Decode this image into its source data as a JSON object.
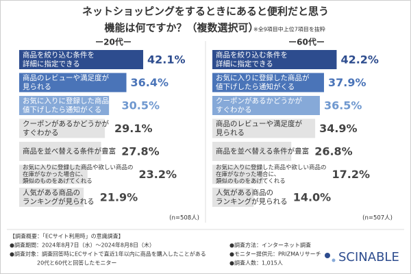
{
  "title": [
    "ネットショッピングをするときにあると便利だと思う",
    "機能は何ですか？（複数選択可）"
  ],
  "note": "※全9項目中上位7項目を抜粋",
  "chart_data": [
    {
      "type": "bar",
      "title": "ー20代ー",
      "categories": [
        [
          "商品を絞り込む条件を",
          "詳細に指定できる"
        ],
        [
          "商品のレビューや満足度が",
          "見られる"
        ],
        [
          "お気に入りに登録した商品が",
          "値下げしたら通知がくる"
        ],
        [
          "クーポンがあるかどうかが",
          "すぐわかる"
        ],
        [
          "商品を並べ替える条件が豊富"
        ],
        [
          "お気に入りに登録した商品や欲しい商品の",
          "在庫がなかった場合に、",
          "類似のものをあげてくれる"
        ],
        [
          "人気がある商品の",
          "ランキングが見られる"
        ]
      ],
      "values": [
        42.1,
        36.4,
        30.5,
        29.1,
        27.8,
        23.2,
        21.9
      ],
      "value_labels": [
        "42.1%",
        "36.4%",
        "30.5%",
        "29.1%",
        "27.8%",
        "23.2%",
        "21.9%"
      ],
      "colors": [
        "#2d4c8e",
        "#4a74b8",
        "#86a9d8",
        "#e3e3e3",
        "#e3e3e3",
        "#e3e3e3",
        "#e3e3e3"
      ],
      "value_label_colors": [
        "#2d4c8e",
        "#4a74b8",
        "#6f98cf",
        "#444444",
        "#444444",
        "#444444",
        "#444444"
      ],
      "sample": "(n=508人)"
    },
    {
      "type": "bar",
      "title": "ー60代ー",
      "categories": [
        [
          "商品を絞り込む条件を",
          "詳細に指定できる"
        ],
        [
          "お気に入りに登録した商品が",
          "値下げしたら通知がくる"
        ],
        [
          "クーポンがあるかどうかが",
          "すぐわかる"
        ],
        [
          "商品のレビューや満足度が",
          "見られる"
        ],
        [
          "商品を並べ替える条件が豊富"
        ],
        [
          "お気に入りに登録した商品や欲しい商品の",
          "在庫がなかった場合に、",
          "類似のものをあげてくれる"
        ],
        [
          "人気がある商品の",
          "ランキングが見られる"
        ]
      ],
      "values": [
        42.2,
        37.9,
        36.5,
        34.9,
        26.8,
        17.2,
        14
      ],
      "value_labels": [
        "42.2%",
        "37.9%",
        "36.5%",
        "34.9%",
        "26.8%",
        "17.2%",
        "14.0%"
      ],
      "colors": [
        "#2d4c8e",
        "#4a74b8",
        "#86a9d8",
        "#e3e3e3",
        "#e3e3e3",
        "#e3e3e3",
        "#e3e3e3"
      ],
      "value_label_colors": [
        "#2d4c8e",
        "#4a74b8",
        "#6f98cf",
        "#444444",
        "#444444",
        "#444444",
        "#444444"
      ],
      "sample": "(n=507人)"
    }
  ],
  "footer": {
    "left": [
      "【調査概要：「ECサイト利用時」の意識調査】",
      "●調査期間：2024年8月7日（水）～2024年8月8日（木）",
      "●調査対象：調査回答時にECサイトで直近1年以内に商品を購入したことがある",
      "　　　　　20代と60代と回答したモニター"
    ],
    "right": [
      "●調査方法：インターネット調査",
      "●モニター提供元：PRIZMAリサーチ",
      "●調査人数：1,015人"
    ]
  },
  "brand": "SCINABLE"
}
